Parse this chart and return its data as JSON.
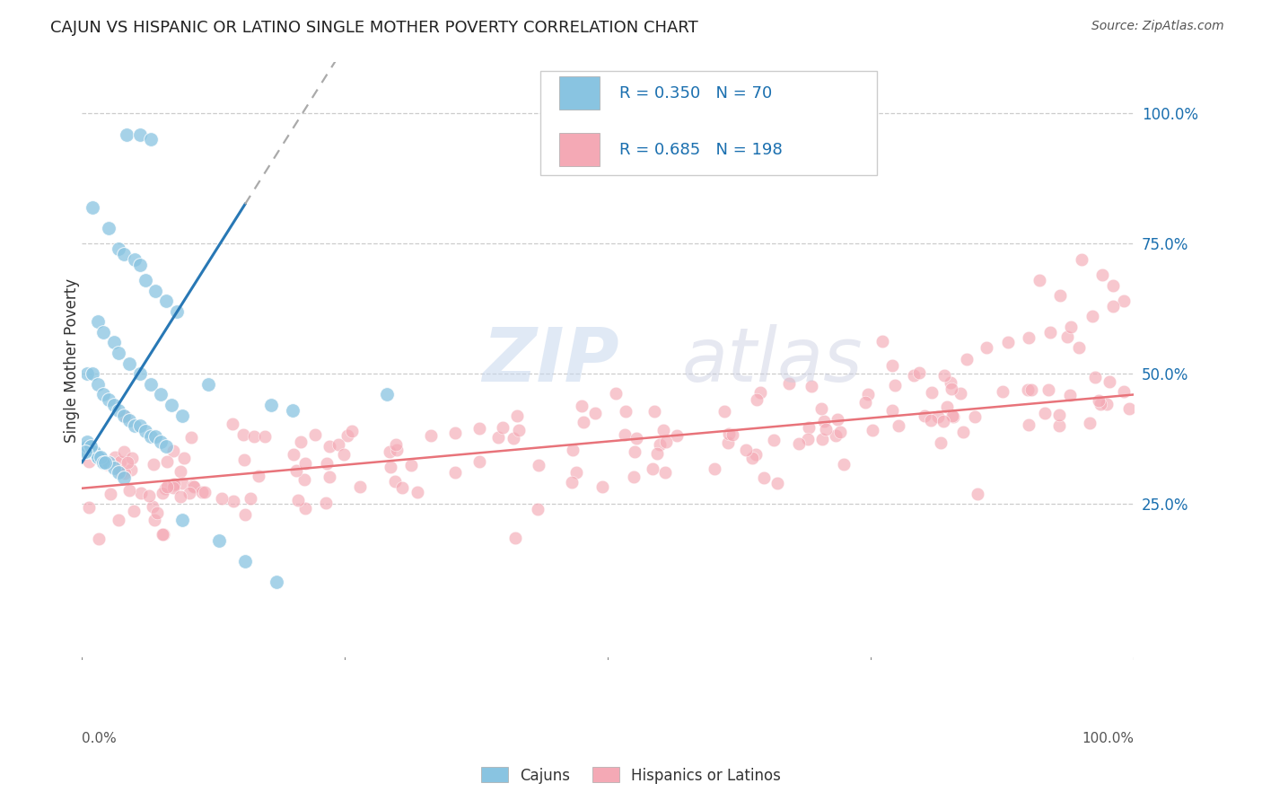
{
  "title": "CAJUN VS HISPANIC OR LATINO SINGLE MOTHER POVERTY CORRELATION CHART",
  "source": "Source: ZipAtlas.com",
  "ylabel": "Single Mother Poverty",
  "legend_label1": "Cajuns",
  "legend_label2": "Hispanics or Latinos",
  "R1": 0.35,
  "N1": 70,
  "R2": 0.685,
  "N2": 198,
  "color_cajun": "#89c4e1",
  "color_hispanic": "#f4a9b5",
  "color_cajun_line": "#2878b5",
  "color_hispanic_line": "#e8737a",
  "color_r_text": "#1a6faf",
  "watermark_zip": "ZIP",
  "watermark_atlas": "atlas",
  "xlim": [
    0.0,
    1.0
  ],
  "ylim": [
    -0.05,
    1.1
  ],
  "ytick_vals": [
    0.25,
    0.5,
    0.75,
    1.0
  ],
  "ytick_labels": [
    "25.0%",
    "50.0%",
    "75.0%",
    "100.0%"
  ],
  "title_fontsize": 13,
  "source_fontsize": 10,
  "legend_fontsize": 13
}
